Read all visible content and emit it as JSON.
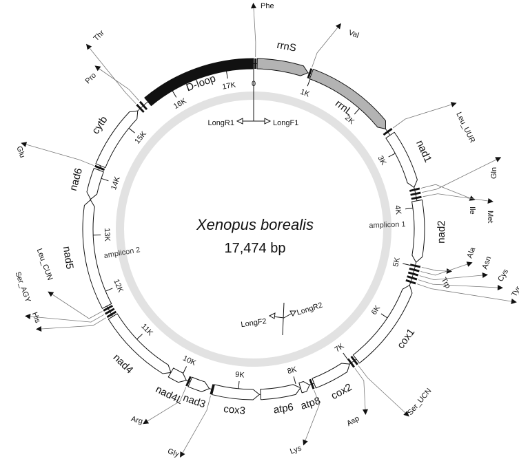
{
  "map": {
    "species": "Xenopus borealis",
    "size_label": "17,474 bp",
    "total_bp": 17474,
    "amplicons": [
      {
        "name": "amplicon 1",
        "start": 0,
        "end": 8100
      },
      {
        "name": "amplicon 2",
        "start": 8100,
        "end": 17474
      }
    ],
    "primers": [
      {
        "name": "LongR1",
        "direction": "reverse"
      },
      {
        "name": "LongF1",
        "direction": "forward"
      },
      {
        "name": "LongF2",
        "direction": "forward"
      },
      {
        "name": "LongR2",
        "direction": "reverse"
      }
    ],
    "genes": [
      {
        "name": "rrnS",
        "start": 60,
        "end": 930,
        "strand": "+",
        "type": "rRNA",
        "color": "#b3b3b3"
      },
      {
        "name": "rrnL",
        "start": 990,
        "end": 2560,
        "strand": "+",
        "type": "rRNA",
        "color": "#b3b3b3"
      },
      {
        "name": "nad1",
        "start": 2690,
        "end": 3660,
        "strand": "+",
        "type": "protein",
        "color": "#ffffff"
      },
      {
        "name": "nad2",
        "start": 3890,
        "end": 4930,
        "strand": "+",
        "type": "protein",
        "color": "#ffffff"
      },
      {
        "name": "cox1",
        "start": 5330,
        "end": 6880,
        "strand": "-",
        "type": "protein",
        "color": "#ffffff"
      },
      {
        "name": "cox2",
        "start": 7020,
        "end": 7700,
        "strand": "-",
        "type": "protein",
        "color": "#ffffff"
      },
      {
        "name": "atp8",
        "start": 7780,
        "end": 7940,
        "strand": "-",
        "type": "protein",
        "color": "#ffffff"
      },
      {
        "name": "atp6",
        "start": 7940,
        "end": 8620,
        "strand": "-",
        "type": "protein",
        "color": "#ffffff"
      },
      {
        "name": "cox3",
        "start": 8640,
        "end": 9420,
        "strand": "-",
        "type": "protein",
        "color": "#ffffff"
      },
      {
        "name": "nad3",
        "start": 9490,
        "end": 9830,
        "strand": "-",
        "type": "protein",
        "color": "#ffffff"
      },
      {
        "name": "nad4L",
        "start": 9900,
        "end": 10190,
        "strand": "-",
        "type": "protein",
        "color": "#ffffff"
      },
      {
        "name": "nad4",
        "start": 10190,
        "end": 11560,
        "strand": "-",
        "type": "protein",
        "color": "#ffffff"
      },
      {
        "name": "nad5",
        "start": 11760,
        "end": 13600,
        "strand": "+",
        "type": "protein",
        "color": "#ffffff"
      },
      {
        "name": "nad6",
        "start": 13610,
        "end": 14120,
        "strand": "-",
        "type": "protein",
        "color": "#ffffff"
      },
      {
        "name": "cytb",
        "start": 14200,
        "end": 15320,
        "strand": "+",
        "type": "protein",
        "color": "#ffffff"
      },
      {
        "name": "D-loop",
        "start": 15550,
        "end": 17474,
        "strand": "+",
        "type": "control",
        "color": "#111111"
      }
    ],
    "trnas": [
      {
        "name": "Phe",
        "pos": 30
      },
      {
        "name": "Val",
        "pos": 960
      },
      {
        "name": "Leu_UUR",
        "pos": 2620
      },
      {
        "name": "Ile",
        "pos": 3700
      },
      {
        "name": "Gln",
        "pos": 3770
      },
      {
        "name": "Met",
        "pos": 3840
      },
      {
        "name": "Trp",
        "pos": 4990
      },
      {
        "name": "Ala",
        "pos": 5060
      },
      {
        "name": "Asn",
        "pos": 5130
      },
      {
        "name": "Cys",
        "pos": 5200
      },
      {
        "name": "Tyr",
        "pos": 5270
      },
      {
        "name": "Ser_UCN",
        "pos": 6920
      },
      {
        "name": "Asp",
        "pos": 6990
      },
      {
        "name": "Lys",
        "pos": 7740
      },
      {
        "name": "Gly",
        "pos": 9440
      },
      {
        "name": "Arg",
        "pos": 9860
      },
      {
        "name": "His",
        "pos": 11600
      },
      {
        "name": "Ser_AGY",
        "pos": 11660
      },
      {
        "name": "Leu_CUN",
        "pos": 11720
      },
      {
        "name": "Glu",
        "pos": 14160
      },
      {
        "name": "Thr",
        "pos": 15380
      },
      {
        "name": "Pro",
        "pos": 15450
      }
    ],
    "ticks": [
      "0",
      "1K",
      "2K",
      "3K",
      "4K",
      "5K",
      "6K",
      "7K",
      "8K",
      "9K",
      "10K",
      "11K",
      "12K",
      "13K",
      "14K",
      "15K",
      "16K",
      "17K"
    ]
  }
}
